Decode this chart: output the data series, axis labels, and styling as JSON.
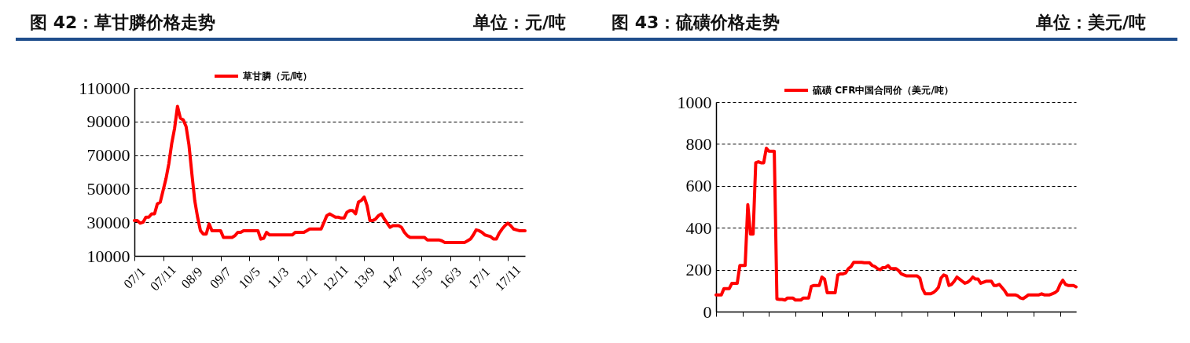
{
  "chart_data": [
    {
      "type": "line",
      "title": "图 42：草甘膦价格走势",
      "subtitle": "单位：元/吨",
      "categories": [
        "07/1",
        null,
        null,
        null,
        null,
        null,
        null,
        null,
        null,
        null,
        "07/11",
        null,
        null,
        null,
        null,
        null,
        null,
        null,
        null,
        null,
        "08/9",
        null,
        null,
        null,
        null,
        null,
        null,
        null,
        null,
        null,
        "09/7",
        null,
        null,
        null,
        null,
        null,
        null,
        null,
        null,
        null,
        "10/5",
        null,
        null,
        null,
        null,
        null,
        null,
        null,
        null,
        null,
        "11/3",
        null,
        null,
        null,
        null,
        null,
        null,
        null,
        null,
        null,
        "12/1",
        null,
        null,
        null,
        null,
        null,
        null,
        null,
        null,
        null,
        "12/11",
        null,
        null,
        null,
        null,
        null,
        null,
        null,
        null,
        null,
        "13/9",
        null,
        null,
        null,
        null,
        null,
        null,
        null,
        null,
        null,
        "14/7",
        null,
        null,
        null,
        null,
        null,
        null,
        null,
        null,
        null,
        "15/5",
        null,
        null,
        null,
        null,
        null,
        null,
        null,
        null,
        null,
        "16/3",
        null,
        null,
        null,
        null,
        null,
        null,
        null,
        null,
        null,
        "17/1",
        null,
        null,
        null,
        null,
        null,
        null,
        null,
        null,
        null,
        "17/11",
        null,
        null,
        null,
        null,
        null,
        null
      ],
      "series": [
        {
          "name": "草甘膦（元/吨）",
          "color": "#ff0000",
          "values": [
            31000,
            31000,
            29500,
            30000,
            33000,
            33000,
            35000,
            35000,
            41000,
            42000,
            49000,
            56000,
            65000,
            77000,
            86000,
            99000,
            92000,
            91000,
            87000,
            76000,
            59000,
            43000,
            33000,
            25000,
            23000,
            23000,
            29000,
            25000,
            25000,
            25000,
            25000,
            21000,
            21000,
            21000,
            21000,
            22000,
            24000,
            24000,
            25000,
            25000,
            25000,
            25000,
            25000,
            25000,
            20000,
            20500,
            24000,
            22500,
            22500,
            22500,
            22500,
            22500,
            22500,
            22500,
            22500,
            22500,
            24000,
            24000,
            24000,
            24000,
            25000,
            26000,
            26000,
            26000,
            26000,
            26000,
            30000,
            34000,
            35000,
            34000,
            33000,
            33000,
            32500,
            32500,
            36000,
            37000,
            37000,
            35000,
            42000,
            43000,
            45000,
            40000,
            31000,
            31000,
            32000,
            34000,
            35000,
            32000,
            29500,
            27000,
            28000,
            28000,
            28000,
            27000,
            24000,
            22000,
            21000,
            21000,
            21000,
            21000,
            21000,
            21000,
            19500,
            19500,
            19500,
            19500,
            19500,
            19000,
            18000,
            18000,
            18000,
            18000,
            18000,
            18000,
            18000,
            18000,
            19000,
            20000,
            22500,
            25500,
            25000,
            24000,
            22500,
            22000,
            21500,
            20000,
            20000,
            23500,
            26000,
            28000,
            29500,
            28000,
            26000,
            25500,
            25000,
            25000,
            25000
          ]
        }
      ],
      "ylim": [
        10000,
        110000
      ],
      "yticks": [
        10000,
        30000,
        50000,
        70000,
        90000,
        110000
      ],
      "grid": "y",
      "legend": "top"
    },
    {
      "type": "line",
      "title": "图 43：硫磺价格走势",
      "subtitle": "单位：美元/吨",
      "categories": [
        null,
        null,
        null,
        null,
        null,
        null,
        null,
        null,
        null,
        null,
        null,
        null,
        null,
        null,
        null,
        null,
        null,
        null,
        null,
        null,
        null,
        null,
        null,
        null,
        null,
        null,
        null,
        null,
        null,
        null,
        null,
        null,
        null,
        null,
        null,
        null,
        null,
        null,
        null,
        null,
        null,
        null,
        null,
        null,
        null,
        null,
        null,
        null,
        null,
        null,
        null,
        null,
        null,
        null,
        null,
        null,
        null,
        null,
        null,
        null,
        null,
        null,
        null,
        null,
        null,
        null,
        null,
        null,
        null,
        null,
        null,
        null,
        null,
        null,
        null,
        null,
        null,
        null,
        null,
        null,
        null,
        null,
        null,
        null,
        null,
        null,
        null,
        null,
        null,
        null,
        null,
        null,
        null,
        null,
        null,
        null,
        null,
        null,
        null,
        null,
        null,
        null,
        null,
        null,
        null,
        null,
        null,
        null,
        null,
        null,
        null,
        null,
        null,
        null,
        null,
        null,
        null,
        null,
        null,
        null,
        null,
        null,
        null,
        null,
        null,
        null,
        null,
        null,
        null,
        null,
        null,
        null,
        null,
        null,
        null,
        null,
        null
      ],
      "series": [
        {
          "name": "硫磺 CFR中国合同价（美元/吨）",
          "color": "#ff0000",
          "values": [
            80,
            80,
            80,
            110,
            110,
            110,
            135,
            135,
            135,
            220,
            220,
            220,
            510,
            370,
            370,
            710,
            715,
            710,
            710,
            780,
            765,
            765,
            765,
            60,
            58,
            58,
            55,
            65,
            65,
            65,
            55,
            55,
            55,
            65,
            65,
            65,
            120,
            125,
            125,
            125,
            165,
            155,
            90,
            90,
            90,
            90,
            175,
            180,
            180,
            185,
            205,
            215,
            235,
            235,
            235,
            235,
            233,
            233,
            233,
            220,
            215,
            205,
            200,
            210,
            210,
            220,
            205,
            205,
            205,
            195,
            180,
            175,
            170,
            170,
            170,
            170,
            170,
            160,
            110,
            85,
            85,
            85,
            90,
            100,
            115,
            160,
            175,
            170,
            125,
            130,
            145,
            165,
            155,
            145,
            135,
            140,
            150,
            165,
            155,
            155,
            135,
            140,
            145,
            145,
            145,
            125,
            125,
            130,
            115,
            100,
            80,
            80,
            80,
            80,
            75,
            65,
            62,
            70,
            80,
            80,
            80,
            80,
            80,
            85,
            80,
            80,
            80,
            85,
            90,
            100,
            130,
            150,
            130,
            125,
            125,
            125,
            118
          ]
        }
      ],
      "ylim": [
        0,
        1000
      ],
      "yticks": [
        0,
        200,
        400,
        600,
        800,
        1000
      ],
      "grid": "y",
      "legend": "top"
    }
  ]
}
